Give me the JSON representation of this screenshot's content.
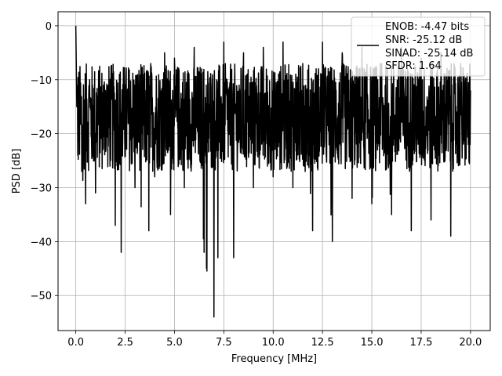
{
  "chart_data": {
    "type": "line",
    "title": "",
    "xlabel": "Frequency [MHz]",
    "ylabel": "PSD [dB]",
    "xlim": [
      -0.9,
      21.0
    ],
    "ylim": [
      -56.5,
      2.6
    ],
    "xticks": [
      0.0,
      2.5,
      5.0,
      7.5,
      10.0,
      12.5,
      15.0,
      17.5,
      20.0
    ],
    "xtick_labels": [
      "0.0",
      "2.5",
      "5.0",
      "7.5",
      "10.0",
      "12.5",
      "15.0",
      "17.5",
      "20.0"
    ],
    "yticks": [
      0,
      -10,
      -20,
      -30,
      -40,
      -50
    ],
    "ytick_labels": [
      "0",
      "−10",
      "−20",
      "−30",
      "−40",
      "−50"
    ],
    "grid": true,
    "legend_position": "top-right",
    "legend": {
      "lines": [
        "ENOB: -4.47 bits",
        "SNR: -25.12 dB",
        "SINAD: -25.14 dB",
        "SFDR: 1.64"
      ]
    },
    "series": [
      {
        "color": "#000000",
        "description_points": "dense noise-floor PSD; representative envelope samples [MHz, dB]",
        "x": [
          0.0,
          0.02,
          0.05,
          0.1,
          0.2,
          0.3,
          0.5,
          0.7,
          1.0,
          1.5,
          2.0,
          2.3,
          2.5,
          3.0,
          3.7,
          3.8,
          4.0,
          4.5,
          4.8,
          5.0,
          5.5,
          6.0,
          6.5,
          7.0,
          7.2,
          7.5,
          8.0,
          8.5,
          9.0,
          9.5,
          10.0,
          10.5,
          11.0,
          11.5,
          12.0,
          12.5,
          13.0,
          13.5,
          14.0,
          14.5,
          15.0,
          15.5,
          16.0,
          16.5,
          17.0,
          17.5,
          18.0,
          18.5,
          19.0,
          19.5,
          20.0
        ],
        "y": [
          0.0,
          -6.0,
          -15.0,
          -24.0,
          -12.0,
          -27.0,
          -33.0,
          -10.0,
          -31.0,
          -12.0,
          -37.0,
          -42.0,
          -11.0,
          -30.0,
          -38.0,
          -7.0,
          -28.0,
          -5.0,
          -35.0,
          -6.0,
          -30.0,
          -4.0,
          -42.0,
          -54.0,
          -43.0,
          -3.0,
          -43.0,
          -5.0,
          -30.0,
          -4.0,
          -28.0,
          -3.0,
          -30.0,
          -7.0,
          -38.0,
          -3.0,
          -40.0,
          -5.0,
          -32.0,
          -4.0,
          -33.0,
          -7.0,
          -35.0,
          -4.0,
          -38.0,
          -6.0,
          -36.0,
          -5.0,
          -39.0,
          -7.0,
          -12.0
        ]
      }
    ]
  }
}
